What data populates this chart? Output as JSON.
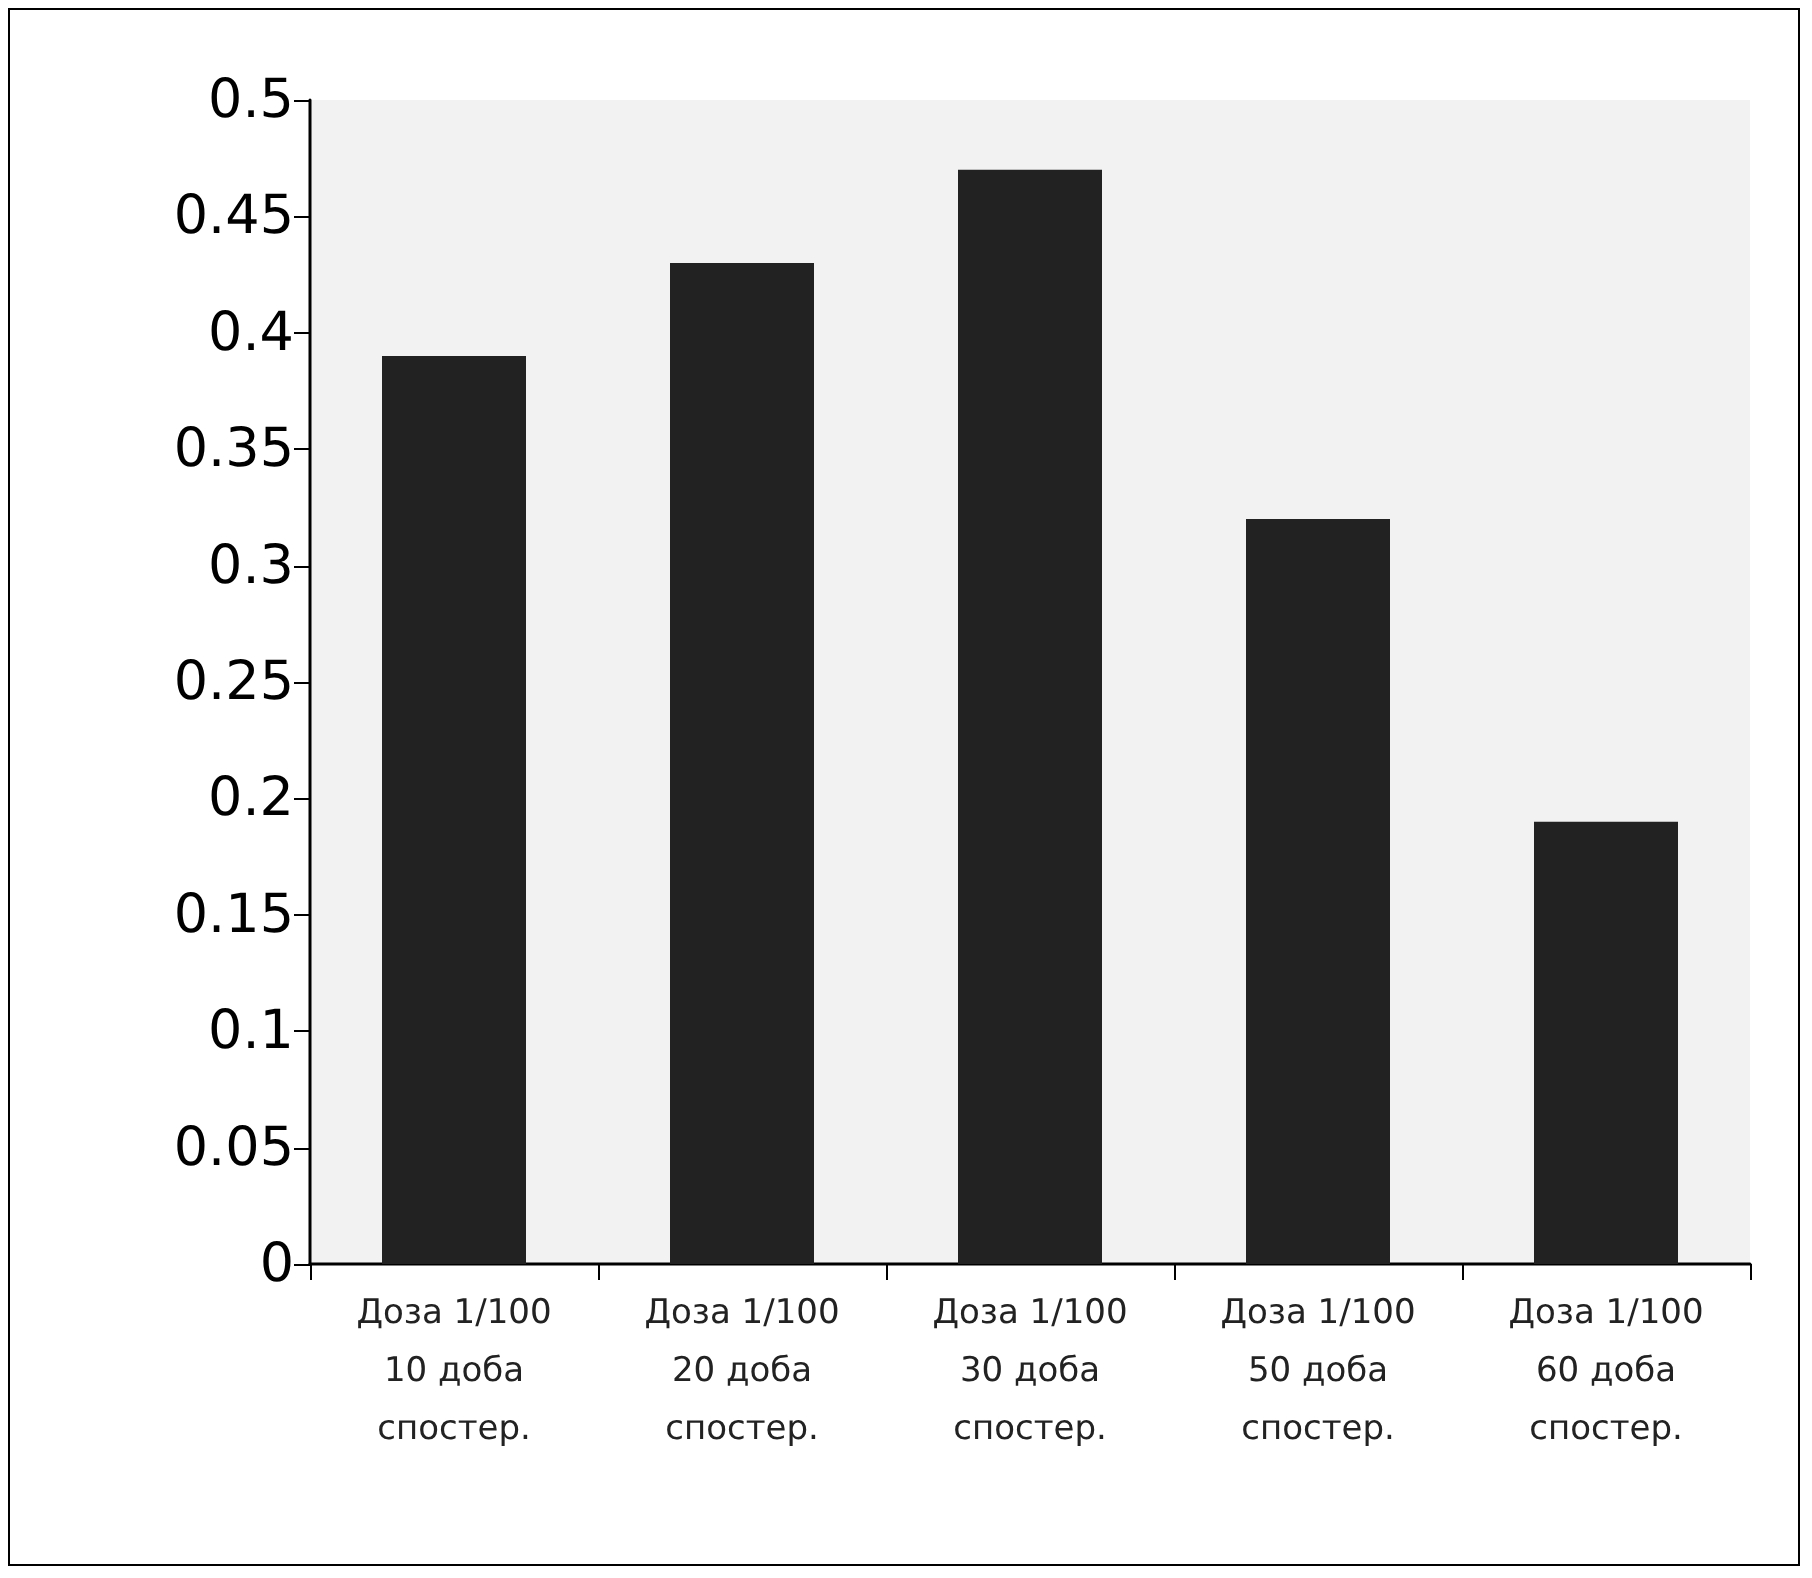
{
  "chart_data": {
    "type": "bar",
    "categories": [
      "Доза 1/100\n10 доба\nспостер.",
      "Доза 1/100\n20 доба\nспостер.",
      "Доза 1/100\n30 доба\nспостер.",
      "Доза 1/100\n50 доба\nспостер.",
      "Доза 1/100\n60 доба\nспостер."
    ],
    "values": [
      0.39,
      0.43,
      0.47,
      0.32,
      0.19
    ],
    "color": "#222222",
    "ylim": [
      0,
      0.5
    ],
    "yticks": [
      0,
      0.05,
      0.1,
      0.15,
      0.2,
      0.25,
      0.3,
      0.35,
      0.4,
      0.45,
      0.5
    ]
  }
}
